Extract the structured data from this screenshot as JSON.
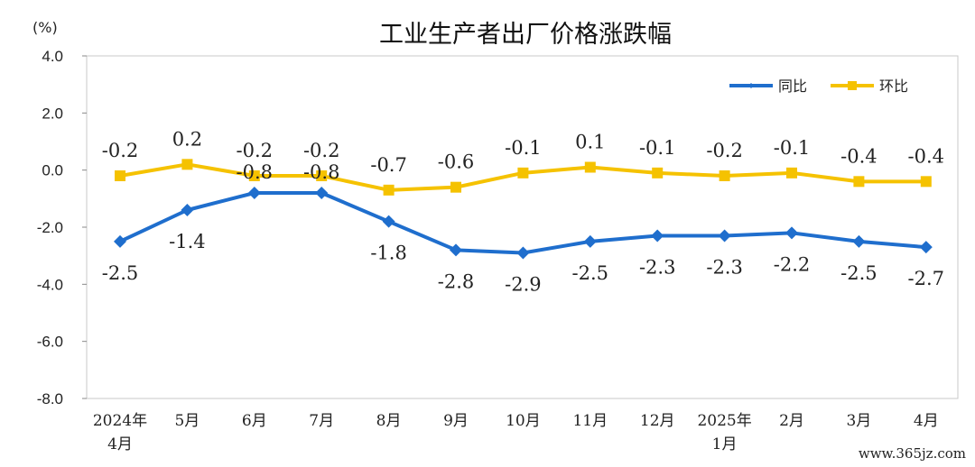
{
  "chart_data": {
    "type": "line",
    "title": "工业生产者出厂价格涨跌幅",
    "unit_label": "(%)",
    "categories": [
      [
        "2024年",
        "4月"
      ],
      [
        "5月"
      ],
      [
        "6月"
      ],
      [
        "7月"
      ],
      [
        "8月"
      ],
      [
        "9月"
      ],
      [
        "10月"
      ],
      [
        "11月"
      ],
      [
        "12月"
      ],
      [
        "2025年",
        "1月"
      ],
      [
        "2月"
      ],
      [
        "3月"
      ],
      [
        "4月"
      ]
    ],
    "ylim": [
      -8.0,
      4.0
    ],
    "yticks": [
      "4.0",
      "2.0",
      "0.0",
      "-2.0",
      "-4.0",
      "-6.0",
      "-8.0"
    ],
    "ytick_values": [
      4,
      2,
      0,
      -2,
      -4,
      -6,
      -8
    ],
    "grid": false,
    "legend_position": "top-right",
    "series": [
      {
        "name": "同比",
        "color": "#1F6ECD",
        "marker": "diamond",
        "values": [
          -2.5,
          -1.4,
          -0.8,
          -0.8,
          -1.8,
          -2.8,
          -2.9,
          -2.5,
          -2.3,
          -2.3,
          -2.2,
          -2.5,
          -2.7
        ],
        "labels": [
          "-2.5",
          "-1.4",
          "-0.8",
          "-0.8",
          "-1.8",
          "-2.8",
          "-2.9",
          "-2.5",
          "-2.3",
          "-2.3",
          "-2.2",
          "-2.5",
          "-2.7"
        ]
      },
      {
        "name": "环比",
        "color": "#F5C200",
        "marker": "square",
        "values": [
          -0.2,
          0.2,
          -0.2,
          -0.2,
          -0.7,
          -0.6,
          -0.1,
          0.1,
          -0.1,
          -0.2,
          -0.1,
          -0.4,
          -0.4
        ],
        "labels": [
          "-0.2",
          "0.2",
          "-0.2",
          "-0.2",
          "-0.7",
          "-0.6",
          "-0.1",
          "0.1",
          "-0.1",
          "-0.2",
          "-0.1",
          "-0.4",
          "-0.4"
        ]
      }
    ]
  },
  "watermark": "www.365jz.com"
}
